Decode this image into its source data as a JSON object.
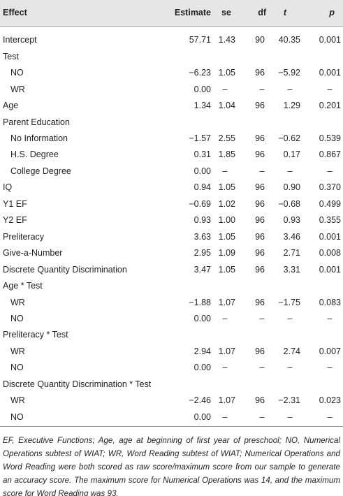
{
  "table": {
    "columns": [
      "Effect",
      "Estimate",
      "se",
      "df",
      "t",
      "p"
    ],
    "rows": [
      {
        "effect": "Intercept",
        "values": [
          "57.71",
          "1.43",
          "90",
          "40.35",
          "0.001"
        ]
      },
      {
        "effect": "Test",
        "levels": [
          {
            "effect": "NO",
            "values": [
              "−6.23",
              "1.05",
              "96",
              "−5.92",
              "0.001"
            ]
          },
          {
            "effect": "WR",
            "values": [
              "0.00",
              "–",
              "–",
              "–",
              "–"
            ]
          }
        ]
      },
      {
        "effect": "Age",
        "values": [
          "1.34",
          "1.04",
          "96",
          "1.29",
          "0.201"
        ]
      },
      {
        "effect": "Parent Education",
        "levels": [
          {
            "effect": "No Information",
            "values": [
              "−1.57",
              "2.55",
              "96",
              "−0.62",
              "0.539"
            ]
          },
          {
            "effect": "H.S. Degree",
            "values": [
              "0.31",
              "1.85",
              "96",
              "0.17",
              "0.867"
            ]
          },
          {
            "effect": "College Degree",
            "values": [
              "0.00",
              "–",
              "–",
              "–",
              "–"
            ]
          }
        ]
      },
      {
        "effect": "IQ",
        "values": [
          "0.94",
          "1.05",
          "96",
          "0.90",
          "0.370"
        ]
      },
      {
        "effect": "Y1 EF",
        "values": [
          "−0.69",
          "1.02",
          "96",
          "−0.68",
          "0.499"
        ]
      },
      {
        "effect": "Y2 EF",
        "values": [
          "0.93",
          "1.00",
          "96",
          "0.93",
          "0.355"
        ]
      },
      {
        "effect": "Preliteracy",
        "values": [
          "3.63",
          "1.05",
          "96",
          "3.46",
          "0.001"
        ]
      },
      {
        "effect": "Give-a-Number",
        "values": [
          "2.95",
          "1.09",
          "96",
          "2.71",
          "0.008"
        ]
      },
      {
        "effect": "Discrete Quantity Discrimination",
        "values": [
          "3.47",
          "1.05",
          "96",
          "3.31",
          "0.001"
        ]
      },
      {
        "effect": "Age * Test",
        "levels": [
          {
            "effect": "WR",
            "values": [
              "−1.88",
              "1.07",
              "96",
              "−1.75",
              "0.083"
            ]
          },
          {
            "effect": "NO",
            "values": [
              "0.00",
              "–",
              "–",
              "–",
              "–"
            ]
          }
        ]
      },
      {
        "effect": "Preliteracy * Test",
        "levels": [
          {
            "effect": "WR",
            "values": [
              "2.94",
              "1.07",
              "96",
              "2.74",
              "0.007"
            ]
          },
          {
            "effect": "NO",
            "values": [
              "0.00",
              "–",
              "–",
              "–",
              "–"
            ]
          }
        ]
      },
      {
        "effect": "Discrete Quantity Discrimination * Test",
        "levels": [
          {
            "effect": "WR",
            "values": [
              "−2.46",
              "1.07",
              "96",
              "−2.31",
              "0.023"
            ]
          },
          {
            "effect": "NO",
            "values": [
              "0.00",
              "–",
              "–",
              "–",
              "–"
            ]
          }
        ]
      }
    ],
    "footnote": "EF, Executive Functions; Age, age at beginning of first year of preschool; NO, Numerical Operations subtest of WIAT; WR, Word Reading subtest of WIAT; Numerical Operations and Word Reading were both scored as raw score/maximum score from our sample to generate an accuracy score. The maximum score for Numerical Operations was 14, and the maximum score for Word Reading was 93."
  }
}
